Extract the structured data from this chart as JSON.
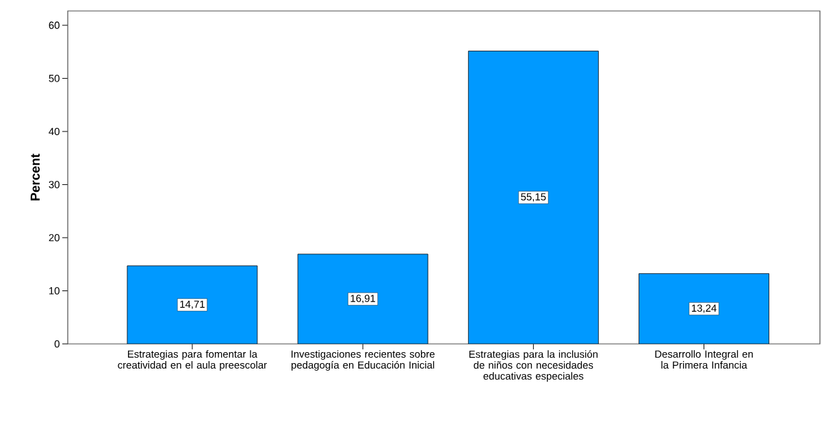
{
  "chart_data": {
    "type": "bar",
    "ylabel": "Percent",
    "categories": [
      "Estrategias para fomentar la creatividad en el aula preescolar",
      "Investigaciones recientes sobre pedagogía en Educación Inicial",
      "Estrategias para la inclusión de niños con necesidades educativas especiales",
      "Desarrollo Integral en la Primera Infancia"
    ],
    "values": [
      14.71,
      16.91,
      55.15,
      13.24
    ],
    "value_labels": [
      "14,71",
      "16,91",
      "55,15",
      "13,24"
    ],
    "color": "#0099ff",
    "ylim": [
      0,
      62.7
    ],
    "yticks": [
      0,
      10,
      20,
      30,
      40,
      50,
      60
    ],
    "grid": false
  }
}
